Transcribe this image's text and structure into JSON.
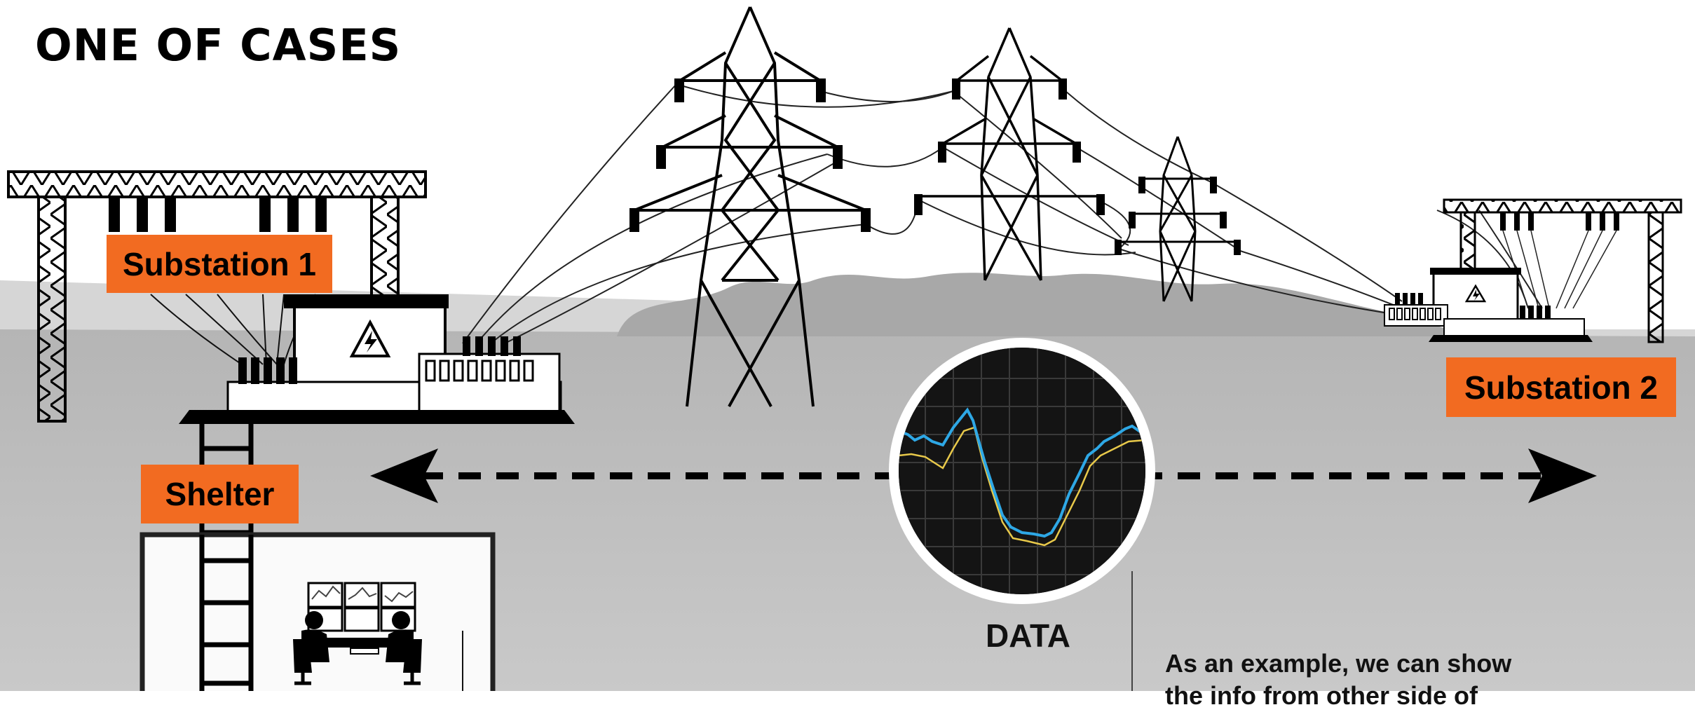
{
  "title": "ONE OF CASES",
  "labels": {
    "substation1": "Substation 1",
    "substation2": "Substation 2",
    "shelter": "Shelter"
  },
  "data_caption": "DATA",
  "note_lines": [
    "As an example, we can show",
    "the info from other side of"
  ],
  "colors": {
    "label_bg": "#f26b21",
    "ground_far": "#a6a6a6",
    "ground_mid": "#b8b8b8",
    "ground_near": "#c4c4c4",
    "graph_blue": "#2ea8e6",
    "graph_yellow": "#e8c94a",
    "icons": "#000000"
  },
  "icons": [
    "lightning-icon",
    "operators-icon",
    "monitor-icon"
  ]
}
